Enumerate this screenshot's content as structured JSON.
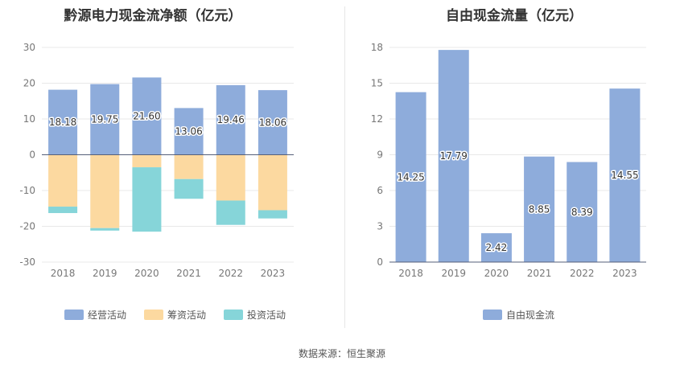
{
  "charts": [
    {
      "id": "left",
      "title": "黔源电力现金流净额（亿元）",
      "legend": [
        "经营活动",
        "筹资活动",
        "投资活动"
      ]
    },
    {
      "id": "right",
      "title": "自由现金流量（亿元）",
      "legend": [
        "自由现金流"
      ]
    }
  ],
  "source": "数据来源：恒生聚源",
  "colors": {
    "operating": "#8eacdb",
    "financing": "#fcd9a0",
    "investing": "#86d5d9",
    "free_cash_flow": "#8eacdb"
  },
  "chart_data": [
    {
      "type": "bar",
      "stacked": true,
      "title": "黔源电力现金流净额（亿元）",
      "categories": [
        "2018",
        "2019",
        "2020",
        "2021",
        "2022",
        "2023"
      ],
      "series": [
        {
          "name": "经营活动",
          "values": [
            18.18,
            19.75,
            21.6,
            13.06,
            19.46,
            18.06
          ],
          "labels": [
            "18.18",
            "19.75",
            "21.60",
            "13.06",
            "19.46",
            "18.06"
          ]
        },
        {
          "name": "筹资活动",
          "values": [
            -14.5,
            -20.5,
            -3.5,
            -6.8,
            -12.8,
            -15.5
          ]
        },
        {
          "name": "投资活动",
          "values": [
            -1.8,
            -0.7,
            -18.0,
            -5.5,
            -6.8,
            -2.3
          ]
        }
      ],
      "ylim": [
        -30,
        30
      ],
      "yticks": [
        -30,
        -20,
        -10,
        0,
        10,
        20,
        30
      ],
      "grid": true,
      "legend_position": "bottom"
    },
    {
      "type": "bar",
      "title": "自由现金流量（亿元）",
      "categories": [
        "2018",
        "2019",
        "2020",
        "2021",
        "2022",
        "2023"
      ],
      "series": [
        {
          "name": "自由现金流",
          "values": [
            14.25,
            17.79,
            2.42,
            8.85,
            8.39,
            14.55
          ],
          "labels": [
            "14.25",
            "17.79",
            "2.42",
            "8.85",
            "8.39",
            "14.55"
          ]
        }
      ],
      "ylim": [
        0,
        18
      ],
      "yticks": [
        0,
        3,
        6,
        9,
        12,
        15,
        18
      ],
      "grid": true,
      "legend_position": "bottom"
    }
  ]
}
